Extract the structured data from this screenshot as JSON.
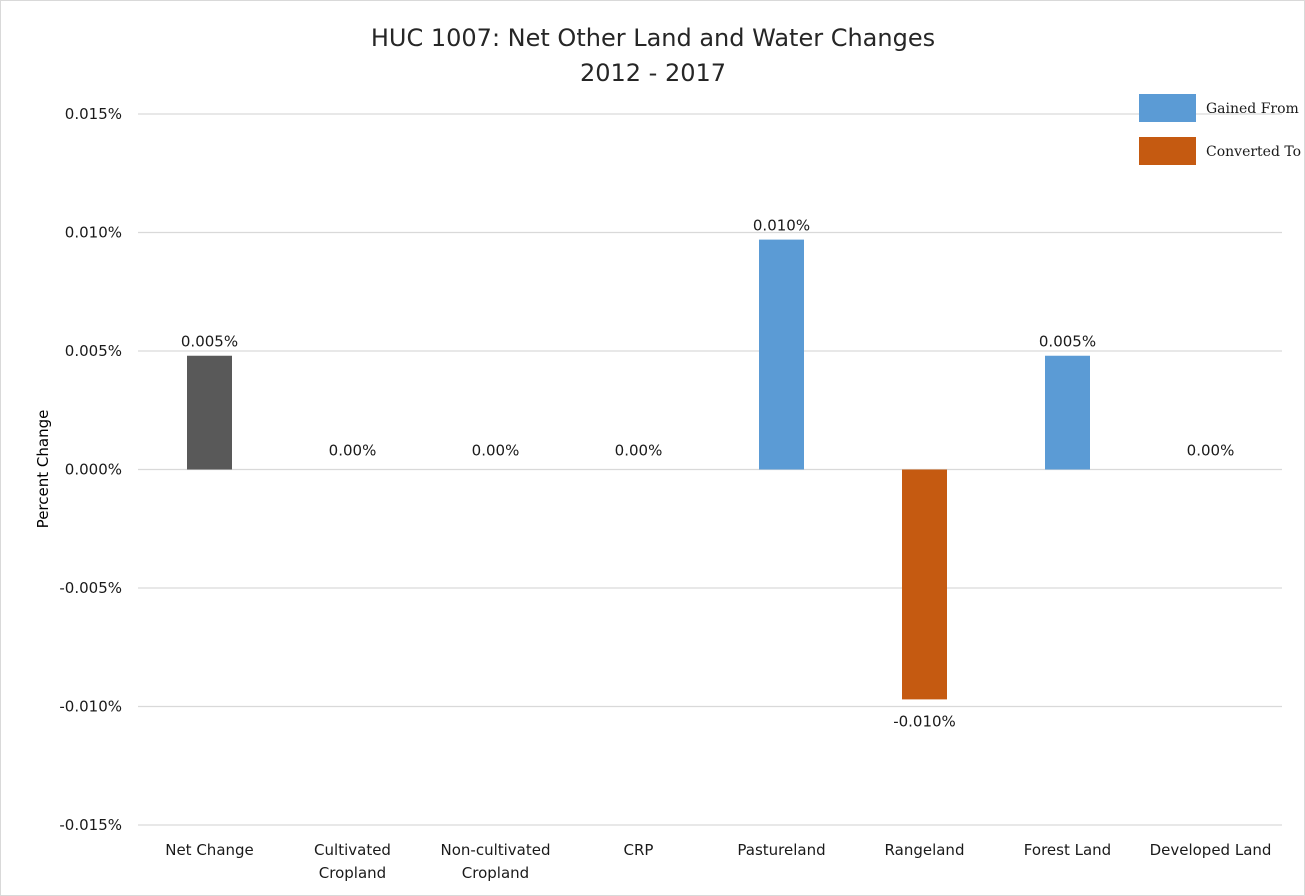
{
  "chart_data": {
    "type": "bar",
    "title": "HUC 1007: Net Other Land and Water Changes",
    "subtitle": "2012 - 2017",
    "ylabel": "Percent Change",
    "xlabel": "",
    "ylim": [
      -0.015,
      0.015
    ],
    "yticks": [
      0.015,
      0.01,
      0.005,
      0.0,
      -0.005,
      -0.01,
      -0.015
    ],
    "ytick_labels": [
      "0.015%",
      "0.010%",
      "0.005%",
      "0.000%",
      "-0.005%",
      "-0.010%",
      "-0.015%"
    ],
    "grid": true,
    "legend_position": "top-right",
    "categories": [
      [
        "Net Change"
      ],
      [
        "Cultivated",
        "Cropland"
      ],
      [
        "Non-cultivated",
        "Cropland"
      ],
      [
        "CRP"
      ],
      [
        "Pastureland"
      ],
      [
        "Rangeland"
      ],
      [
        "Forest Land"
      ],
      [
        "Developed Land"
      ]
    ],
    "values": [
      0.0048,
      0,
      0,
      0,
      0.0097,
      -0.0097,
      0.0048,
      0
    ],
    "data_labels": [
      "0.005%",
      "0.00%",
      "0.00%",
      "0.00%",
      "0.010%",
      "-0.010%",
      "0.005%",
      "0.00%"
    ],
    "bar_kinds": [
      "net",
      "none",
      "none",
      "none",
      "gained",
      "converted",
      "gained",
      "none"
    ],
    "colors": {
      "net": "#595959",
      "gained": "#5b9bd5",
      "converted": "#c55a11",
      "none": "#5b9bd5",
      "grid": "#d9d9d9"
    },
    "legend": [
      {
        "label": "Gained From",
        "kind": "gained"
      },
      {
        "label": "Converted To",
        "kind": "converted"
      }
    ]
  }
}
